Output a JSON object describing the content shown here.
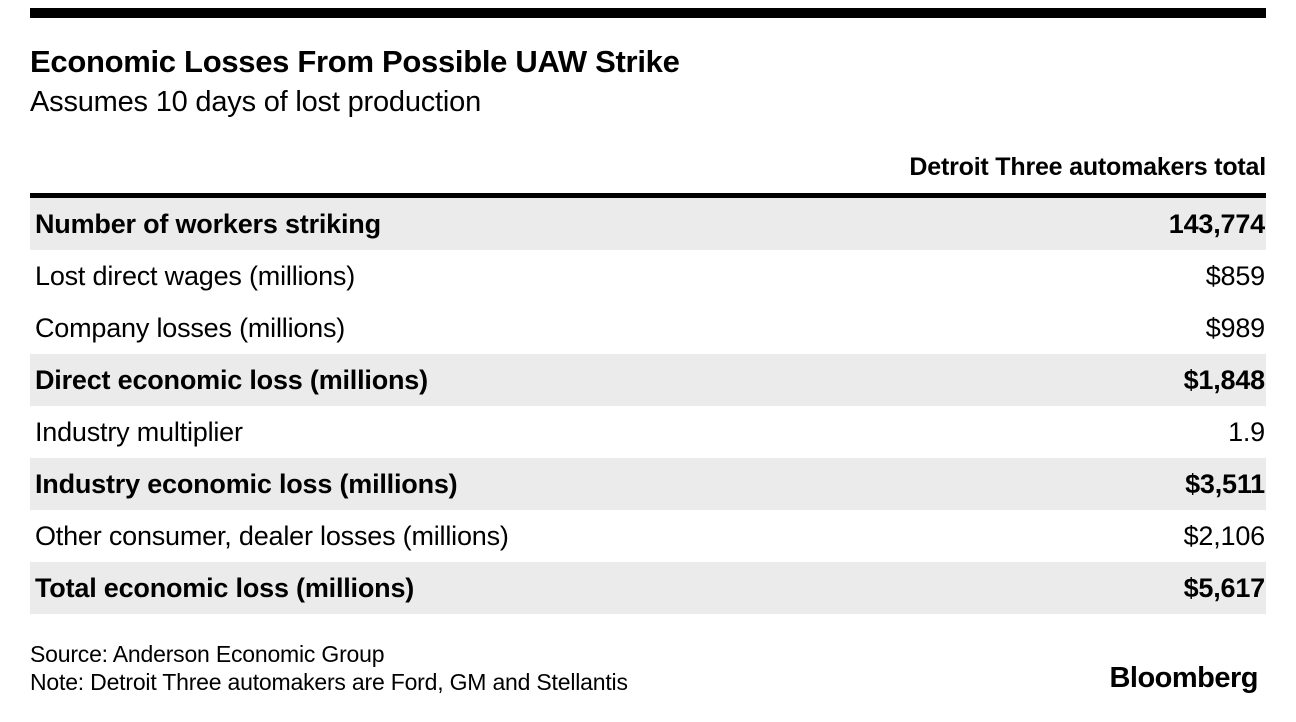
{
  "header": {
    "title": "Economic Losses From Possible UAW Strike",
    "subtitle": "Assumes 10 days of lost production"
  },
  "table": {
    "column_header": "Detroit Three automakers total",
    "rows": [
      {
        "label": "Number of workers striking",
        "value": "143,774",
        "emphasis": true
      },
      {
        "label": "Lost direct wages (millions)",
        "value": "$859",
        "emphasis": false
      },
      {
        "label": "Company losses (millions)",
        "value": "$989",
        "emphasis": false
      },
      {
        "label": "Direct economic loss (millions)",
        "value": "$1,848",
        "emphasis": true
      },
      {
        "label": "Industry multiplier",
        "value": "1.9",
        "emphasis": false
      },
      {
        "label": "Industry economic loss (millions)",
        "value": "$3,511",
        "emphasis": true
      },
      {
        "label": "Other consumer, dealer losses (millions)",
        "value": "$2,106",
        "emphasis": false
      },
      {
        "label": "Total economic loss (millions)",
        "value": "$5,617",
        "emphasis": true
      }
    ]
  },
  "footer": {
    "source": "Source: Anderson Economic Group",
    "note": "Note: Detroit Three automakers are Ford, GM and Stellantis",
    "brand": "Bloomberg"
  },
  "colors": {
    "band": "#ebebeb",
    "rule": "#000000",
    "text": "#000000"
  },
  "chart_data": {
    "type": "table",
    "title": "Economic Losses From Possible UAW Strike",
    "subtitle": "Assumes 10 days of lost production",
    "columns": [
      "",
      "Detroit Three automakers total"
    ],
    "rows": [
      [
        "Number of workers striking",
        "143,774"
      ],
      [
        "Lost direct wages (millions)",
        "$859"
      ],
      [
        "Company losses (millions)",
        "$989"
      ],
      [
        "Direct economic loss (millions)",
        "$1,848"
      ],
      [
        "Industry multiplier",
        "1.9"
      ],
      [
        "Industry economic loss (millions)",
        "$3,511"
      ],
      [
        "Other consumer, dealer losses (millions)",
        "$2,106"
      ],
      [
        "Total economic loss (millions)",
        "$5,617"
      ]
    ],
    "emphasized_row_indices": [
      0,
      3,
      5,
      7
    ],
    "source": "Source: Anderson Economic Group",
    "note": "Note: Detroit Three automakers are Ford, GM and Stellantis",
    "legend_position": "none",
    "grid": false
  }
}
